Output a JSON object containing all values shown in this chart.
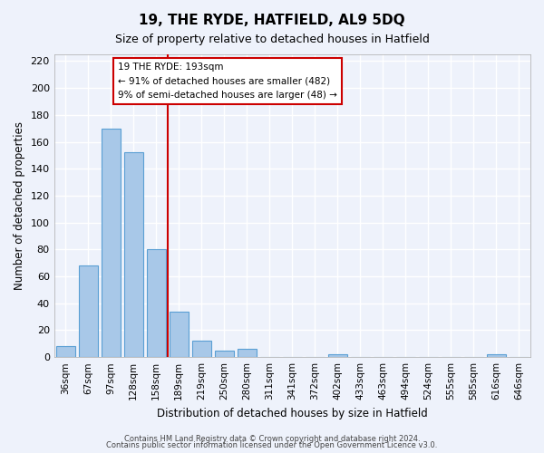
{
  "title": "19, THE RYDE, HATFIELD, AL9 5DQ",
  "subtitle": "Size of property relative to detached houses in Hatfield",
  "xlabel": "Distribution of detached houses by size in Hatfield",
  "ylabel": "Number of detached properties",
  "bar_labels": [
    "36sqm",
    "67sqm",
    "97sqm",
    "128sqm",
    "158sqm",
    "189sqm",
    "219sqm",
    "250sqm",
    "280sqm",
    "311sqm",
    "341sqm",
    "372sqm",
    "402sqm",
    "433sqm",
    "463sqm",
    "494sqm",
    "524sqm",
    "555sqm",
    "585sqm",
    "616sqm",
    "646sqm"
  ],
  "bar_values": [
    8,
    68,
    170,
    152,
    80,
    34,
    12,
    5,
    6,
    0,
    0,
    0,
    2,
    0,
    0,
    0,
    0,
    0,
    0,
    2,
    0
  ],
  "bar_color": "#a8c8e8",
  "bar_edge_color": "#5a9fd4",
  "vline_x_index": 5,
  "vline_color": "#cc0000",
  "ylim": [
    0,
    225
  ],
  "yticks": [
    0,
    20,
    40,
    60,
    80,
    100,
    120,
    140,
    160,
    180,
    200,
    220
  ],
  "annotation_title": "19 THE RYDE: 193sqm",
  "annotation_line1": "← 91% of detached houses are smaller (482)",
  "annotation_line2": "9% of semi-detached houses are larger (48) →",
  "footer_line1": "Contains HM Land Registry data © Crown copyright and database right 2024.",
  "footer_line2": "Contains public sector information licensed under the Open Government Licence v3.0.",
  "background_color": "#eef2fb",
  "grid_color": "#ffffff"
}
